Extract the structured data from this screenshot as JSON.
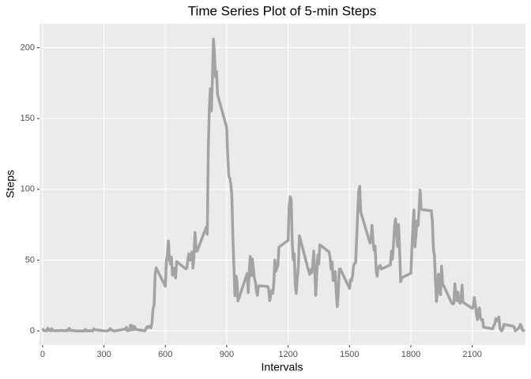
{
  "chart_data": {
    "type": "line",
    "title": "Time Series Plot of 5-min Steps",
    "x_label": "Intervals",
    "y_label": "Steps",
    "x": [
      0,
      5,
      10,
      15,
      20,
      25,
      30,
      35,
      40,
      45,
      50,
      55,
      100,
      105,
      110,
      115,
      120,
      125,
      130,
      135,
      140,
      145,
      150,
      155,
      200,
      205,
      210,
      215,
      220,
      225,
      230,
      235,
      240,
      245,
      250,
      255,
      300,
      305,
      310,
      315,
      320,
      325,
      330,
      335,
      340,
      345,
      350,
      355,
      400,
      405,
      410,
      415,
      420,
      425,
      430,
      435,
      440,
      445,
      450,
      455,
      500,
      505,
      510,
      515,
      520,
      525,
      530,
      535,
      540,
      545,
      550,
      555,
      600,
      605,
      610,
      615,
      620,
      625,
      630,
      635,
      640,
      645,
      650,
      655,
      700,
      705,
      710,
      715,
      720,
      725,
      730,
      735,
      740,
      745,
      750,
      755,
      800,
      805,
      810,
      815,
      820,
      825,
      830,
      835,
      840,
      845,
      850,
      855,
      900,
      905,
      910,
      915,
      920,
      925,
      930,
      935,
      940,
      945,
      950,
      955,
      1000,
      1005,
      1010,
      1015,
      1020,
      1025,
      1030,
      1035,
      1040,
      1045,
      1050,
      1055,
      1100,
      1105,
      1110,
      1115,
      1120,
      1125,
      1130,
      1135,
      1140,
      1145,
      1150,
      1155,
      1200,
      1205,
      1210,
      1215,
      1220,
      1225,
      1230,
      1235,
      1240,
      1245,
      1250,
      1255,
      1300,
      1305,
      1310,
      1315,
      1320,
      1325,
      1330,
      1335,
      1340,
      1345,
      1350,
      1355,
      1400,
      1405,
      1410,
      1415,
      1420,
      1425,
      1430,
      1435,
      1440,
      1445,
      1450,
      1455,
      1500,
      1505,
      1510,
      1515,
      1520,
      1525,
      1530,
      1535,
      1540,
      1545,
      1550,
      1555,
      1600,
      1605,
      1610,
      1615,
      1620,
      1625,
      1630,
      1635,
      1640,
      1645,
      1650,
      1655,
      1700,
      1705,
      1710,
      1715,
      1720,
      1725,
      1730,
      1735,
      1740,
      1745,
      1750,
      1755,
      1800,
      1805,
      1810,
      1815,
      1820,
      1825,
      1830,
      1835,
      1840,
      1845,
      1850,
      1855,
      1900,
      1905,
      1910,
      1915,
      1920,
      1925,
      1930,
      1935,
      1940,
      1945,
      1950,
      1955,
      2000,
      2005,
      2010,
      2015,
      2020,
      2025,
      2030,
      2035,
      2040,
      2045,
      2050,
      2055,
      2100,
      2105,
      2110,
      2115,
      2120,
      2125,
      2130,
      2135,
      2140,
      2145,
      2150,
      2155,
      2200,
      2205,
      2210,
      2215,
      2220,
      2225,
      2230,
      2235,
      2240,
      2245,
      2250,
      2255,
      2300,
      2305,
      2310,
      2315,
      2320,
      2325,
      2330,
      2335,
      2340,
      2345,
      2350,
      2355
    ],
    "series": [
      {
        "color": "#a3a3a3",
        "values": [
          1.7,
          0.3,
          0.1,
          0.2,
          0,
          2,
          0.5,
          0.9,
          0,
          1.5,
          0.3,
          0.1,
          0.3,
          0,
          0.2,
          0.3,
          0,
          1.1,
          1.8,
          0.2,
          0.2,
          0.4,
          0.3,
          0,
          0,
          0,
          1.1,
          0,
          0,
          0.1,
          0,
          0.2,
          0,
          0,
          1.5,
          0.9,
          0,
          0,
          0,
          0,
          0.2,
          0.6,
          1.6,
          0.6,
          0.5,
          0.1,
          0,
          0,
          1.2,
          0.9,
          2.6,
          0,
          0.3,
          0.4,
          4.1,
          0.7,
          3.5,
          0.8,
          3.1,
          1.1,
          0,
          1.6,
          3,
          2.2,
          3.3,
          3,
          2.1,
          6.1,
          16,
          18.3,
          39.5,
          44.5,
          31.5,
          49.3,
          53.8,
          63.5,
          50,
          47.1,
          52.2,
          39.3,
          44,
          44.2,
          37.4,
          49,
          43.8,
          44.4,
          50.5,
          54.5,
          49.9,
          51,
          55.7,
          44.3,
          52.3,
          69.5,
          57.8,
          56.2,
          73.4,
          68.2,
          129.4,
          157.5,
          171.2,
          155.4,
          177.3,
          206.2,
          195.9,
          179.6,
          183.4,
          167,
          143.5,
          124,
          109.1,
          108.1,
          103.7,
          95.9,
          66.2,
          45.2,
          24.8,
          38.8,
          35,
          21.1,
          40.6,
          27,
          42.4,
          52.7,
          38.9,
          50.8,
          44.3,
          37.4,
          34.7,
          28.3,
          25.1,
          31.9,
          31.4,
          29.7,
          21.3,
          25.5,
          28.4,
          26.5,
          33.4,
          50,
          42,
          44.6,
          46,
          59.2,
          63.9,
          87.7,
          94.8,
          92.8,
          63.4,
          50.2,
          54.5,
          32.4,
          26.5,
          37.7,
          45.1,
          67.3,
          42.3,
          39.9,
          43.3,
          41,
          46.2,
          56.4,
          42.8,
          25.1,
          40,
          53.5,
          47.3,
          60.8,
          55.8,
          52,
          43.6,
          48.7,
          35.5,
          37.5,
          41.8,
          27.5,
          17.1,
          26.1,
          43.6,
          43.8,
          30,
          36.1,
          35.5,
          38.8,
          46,
          47.8,
          48.1,
          65.3,
          82.9,
          98.7,
          102.1,
          84,
          62.1,
          64.1,
          74.5,
          63.2,
          56.9,
          59.8,
          43.9,
          38.6,
          44.7,
          45.5,
          46.2,
          43.7,
          46.6,
          56.3,
          50.7,
          61.2,
          73.4,
          79.1,
          68.9,
          59.7,
          75.1,
          56.5,
          34.8,
          37.5,
          40.7,
          58,
          74.7,
          85.3,
          59.3,
          67.8,
          77.7,
          74.2,
          85.3,
          99.5,
          86.6,
          85.6,
          84.9,
          77.8,
          58,
          53.4,
          36.3,
          20.7,
          27.4,
          40,
          30.2,
          25.5,
          45.7,
          33.5,
          19.6,
          19,
          19.3,
          33.3,
          26.8,
          21.2,
          27.3,
          21.3,
          19.5,
          21.3,
          32.3,
          20.2,
          15.9,
          17.2,
          23.5,
          19.2,
          12.5,
          8,
          14.7,
          16.3,
          8.7,
          7.8,
          8.1,
          2.6,
          1.5,
          3.7,
          4.8,
          8.5,
          7.1,
          8.7,
          9.8,
          2.2,
          0.3,
          0.1,
          1.6,
          4.6,
          3.3,
          2.8,
          0,
          0.8,
          1,
          1.6,
          2.6,
          4.7,
          3.3,
          0.6,
          0.2,
          1.1
        ]
      }
    ],
    "xlim": [
      -15,
      2360
    ],
    "ylim": [
      -10,
      217
    ],
    "xticks": [
      0,
      300,
      600,
      900,
      1200,
      1500,
      1800,
      2100
    ],
    "yticks": [
      0,
      50,
      100,
      150,
      200
    ],
    "grid": true
  }
}
